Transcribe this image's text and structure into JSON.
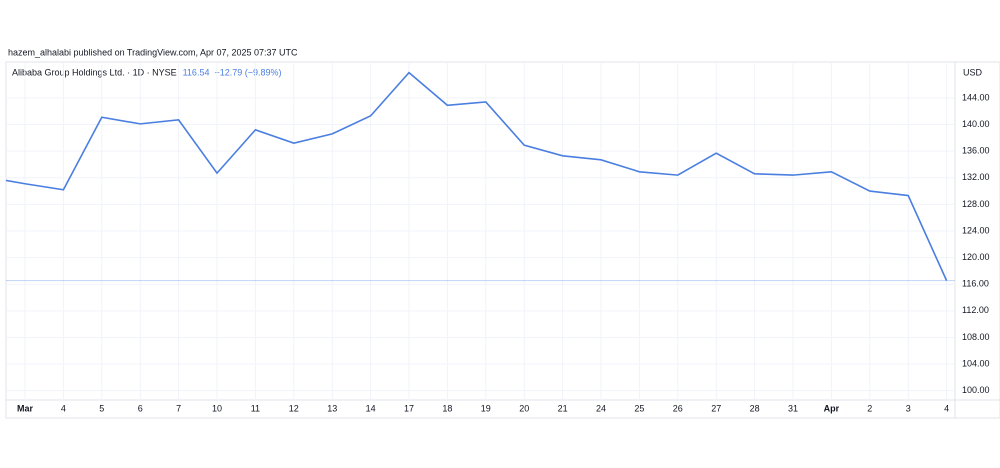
{
  "header": {
    "published": "hazem_alhalabi published on TradingView.com, Apr 07, 2025 07:37 UTC"
  },
  "chart_data": {
    "type": "line",
    "title": "Alibaba Group Holdings Ltd. · 1D · NYSE",
    "change": "−12.79 (−9.89%)",
    "y_axis_label": "USD",
    "categories": [
      null,
      "Mar",
      "4",
      "5",
      "6",
      "7",
      "10",
      "11",
      "12",
      "13",
      "14",
      "17",
      "18",
      "19",
      "20",
      "21",
      "24",
      "25",
      "26",
      "27",
      "28",
      "31",
      "Apr",
      "2",
      "3",
      "4"
    ],
    "series": [
      {
        "name": "Alibaba Group Holdings Ltd.",
        "color": "#4a7ee0",
        "values": [
          132.1,
          131.1,
          130.2,
          141.1,
          140.1,
          140.7,
          132.7,
          139.2,
          137.2,
          138.6,
          141.3,
          147.8,
          142.9,
          143.4,
          136.9,
          135.3,
          134.7,
          132.9,
          132.4,
          135.7,
          132.6,
          132.4,
          132.9,
          130.0,
          129.33,
          116.54
        ]
      }
    ],
    "ylim": [
      98.6,
      149.4
    ],
    "yticks": [
      {
        "value": 100,
        "label": "100.00"
      },
      {
        "value": 104,
        "label": "104.00"
      },
      {
        "value": 108,
        "label": "108.00"
      },
      {
        "value": 112,
        "label": "112.00"
      },
      {
        "value": 116,
        "label": "116.00"
      },
      {
        "value": 120,
        "label": "120.00"
      },
      {
        "value": 124,
        "label": "124.00"
      },
      {
        "value": 128,
        "label": "128.00"
      },
      {
        "value": 132,
        "label": "132.00"
      },
      {
        "value": 136,
        "label": "136.00"
      },
      {
        "value": 140,
        "label": "140.00"
      },
      {
        "value": 144,
        "label": "144.00"
      }
    ],
    "grid": true
  }
}
